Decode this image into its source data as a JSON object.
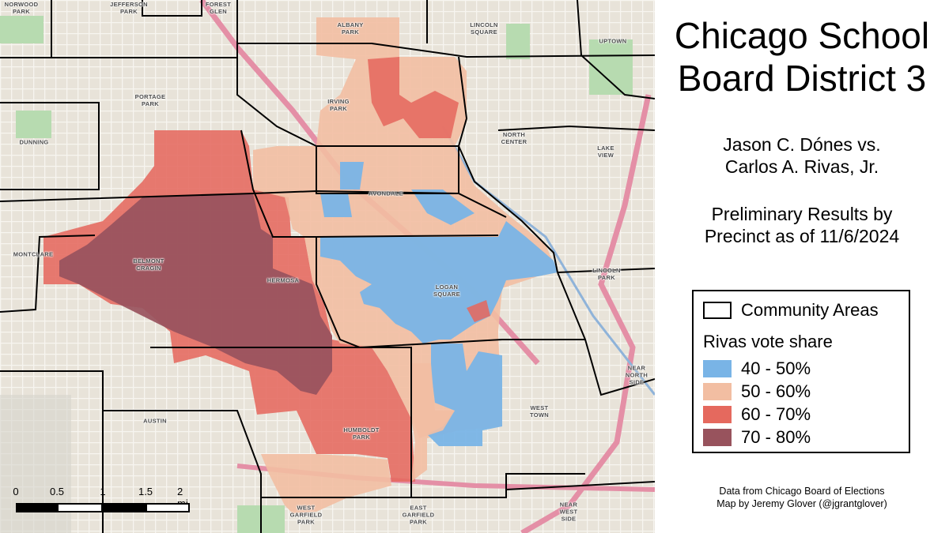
{
  "title_lines": [
    "Chicago School",
    "Board District 3"
  ],
  "subtitle_lines": [
    "Jason C. Dónes vs.",
    "Carlos A. Rivas, Jr."
  ],
  "results_lines": [
    "Preliminary Results by",
    "Precinct as of 11/6/2024"
  ],
  "legend": {
    "community_areas_label": "Community Areas",
    "vote_share_heading": "Rivas vote share",
    "bins": [
      {
        "label": "40 - 50%",
        "color": "#79b4e6"
      },
      {
        "label": "50 - 60%",
        "color": "#f2bea2"
      },
      {
        "label": "60 - 70%",
        "color": "#e5695e"
      },
      {
        "label": "70 - 80%",
        "color": "#98535d"
      }
    ]
  },
  "credits": [
    "Data from Chicago Board of Elections",
    "Map by Jeremy Glover (@jgrantglover)"
  ],
  "scale_bar": {
    "ticks": [
      "0",
      "0.5",
      "1",
      "1.5",
      "2 mi"
    ]
  },
  "community_areas": [
    "NORWOOD\nPARK",
    "JEFFERSON\nPARK",
    "FOREST\nGLEN",
    "ALBANY\nPARK",
    "LINCOLN\nSQUARE",
    "UPTOWN",
    "PORTAGE\nPARK",
    "IRVING\nPARK",
    "NORTH\nCENTER",
    "DUNNING",
    "LAKE\nVIEW",
    "AVONDALE",
    "MONTCLARE",
    "BELMONT\nCRAGIN",
    "HERMOSA",
    "LOGAN\nSQUARE",
    "LINCOLN\nPARK",
    "NEAR\nNORTH\nSIDE",
    "AUSTIN",
    "HUMBOLDT\nPARK",
    "WEST\nTOWN",
    "WEST\nGARFIELD\nPARK",
    "EAST\nGARFIELD\nPARK",
    "NEAR\nWEST\nSIDE"
  ],
  "colors": {
    "map_background": "#e9e5dc",
    "boundary": "#000000",
    "expressway": "#e48fa6",
    "park": "#b7dbb0"
  }
}
